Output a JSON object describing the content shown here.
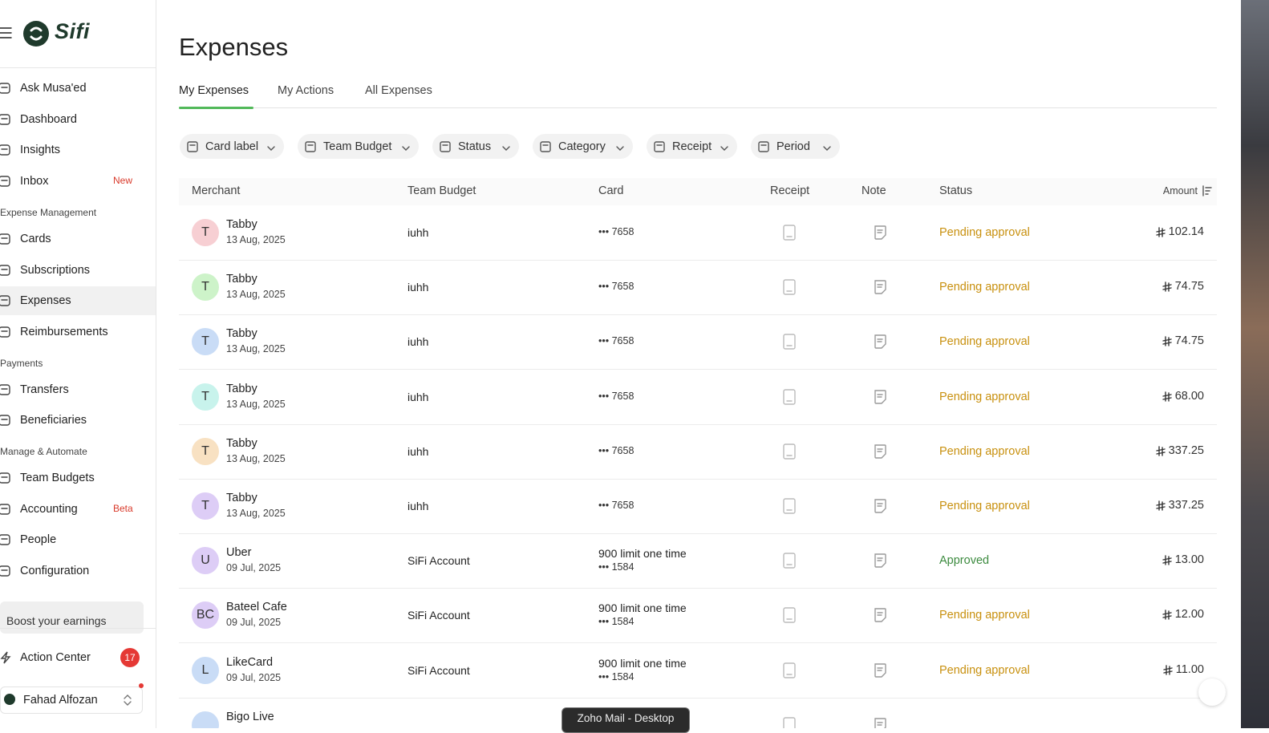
{
  "sidebar": {
    "brand": "Sifi",
    "groups": [
      {
        "items": [
          {
            "label": "Ask Musa'ed"
          },
          {
            "label": "Dashboard"
          },
          {
            "label": "Insights"
          },
          {
            "label": "Inbox",
            "badge": "New"
          }
        ]
      },
      {
        "title": "Expense Management",
        "items": [
          {
            "label": "Cards"
          },
          {
            "label": "Subscriptions"
          },
          {
            "label": "Expenses",
            "active": true
          },
          {
            "label": "Reimbursements"
          }
        ]
      },
      {
        "title": "Payments",
        "items": [
          {
            "label": "Transfers"
          },
          {
            "label": "Beneficiaries"
          }
        ]
      },
      {
        "title": "Manage & Automate",
        "items": [
          {
            "label": "Team Budgets"
          },
          {
            "label": "Accounting",
            "badge": "Beta"
          },
          {
            "label": "People"
          },
          {
            "label": "Configuration"
          }
        ]
      }
    ],
    "promo": "Boost your earnings",
    "action_center": {
      "label": "Action Center",
      "count": "17"
    },
    "user": "Fahad Alfozan"
  },
  "main": {
    "title": "Expenses",
    "tabs": [
      {
        "label": "My Expenses",
        "active": true
      },
      {
        "label": "My Actions"
      },
      {
        "label": "All Expenses"
      }
    ],
    "filters": [
      "Card label",
      "Team Budget",
      "Status",
      "Category",
      "Receipt",
      "Period"
    ],
    "table": {
      "columns": [
        "Merchant",
        "Team Budget",
        "Card",
        "Receipt",
        "Note",
        "Status",
        "Amount"
      ],
      "rows": [
        {
          "avatar": "T",
          "avatar_color": "#f7cfd3",
          "merchant": "Tabby",
          "date": "13 Aug, 2025",
          "team_budget": "iuhh",
          "card_number": "••• 7658",
          "status": "Pending approval",
          "status_color": "#c8900e",
          "amount": "102.14"
        },
        {
          "avatar": "T",
          "avatar_color": "#cdf3c9",
          "merchant": "Tabby",
          "date": "13 Aug, 2025",
          "team_budget": "iuhh",
          "card_number": "••• 7658",
          "status": "Pending approval",
          "status_color": "#c8900e",
          "amount": "74.75"
        },
        {
          "avatar": "T",
          "avatar_color": "#c9dcf6",
          "merchant": "Tabby",
          "date": "13 Aug, 2025",
          "team_budget": "iuhh",
          "card_number": "••• 7658",
          "status": "Pending approval",
          "status_color": "#c8900e",
          "amount": "74.75"
        },
        {
          "avatar": "T",
          "avatar_color": "#c8f3ec",
          "merchant": "Tabby",
          "date": "13 Aug, 2025",
          "team_budget": "iuhh",
          "card_number": "••• 7658",
          "status": "Pending approval",
          "status_color": "#c8900e",
          "amount": "68.00"
        },
        {
          "avatar": "T",
          "avatar_color": "#f8e1c2",
          "merchant": "Tabby",
          "date": "13 Aug, 2025",
          "team_budget": "iuhh",
          "card_number": "••• 7658",
          "status": "Pending approval",
          "status_color": "#c8900e",
          "amount": "337.25"
        },
        {
          "avatar": "T",
          "avatar_color": "#ddcdf6",
          "merchant": "Tabby",
          "date": "13 Aug, 2025",
          "team_budget": "iuhh",
          "card_number": "••• 7658",
          "status": "Pending approval",
          "status_color": "#c8900e",
          "amount": "337.25"
        },
        {
          "avatar": "U",
          "avatar_color": "#ddcdf6",
          "merchant": "Uber",
          "date": "09 Jul, 2025",
          "team_budget": "SiFi Account",
          "card_label": "900 limit one time",
          "card_number": "••• 1584",
          "status": "Approved",
          "status_color": "#3b8a3e",
          "amount": "13.00"
        },
        {
          "avatar": "BC",
          "avatar_color": "#ddcdf6",
          "merchant": "Bateel Cafe",
          "date": "09 Jul, 2025",
          "team_budget": "SiFi Account",
          "card_label": "900 limit one time",
          "card_number": "••• 1584",
          "status": "Pending approval",
          "status_color": "#c8900e",
          "amount": "12.00"
        },
        {
          "avatar": "L",
          "avatar_color": "#c9dcf6",
          "merchant": "LikeCard",
          "date": "09 Jul, 2025",
          "team_budget": "SiFi Account",
          "card_label": "900 limit one time",
          "card_number": "••• 1584",
          "status": "Pending approval",
          "status_color": "#c8900e",
          "amount": "11.00"
        },
        {
          "avatar_color": "#c9dcf6",
          "merchant": "Bigo Live"
        }
      ]
    }
  },
  "tooltip": "Zoho Mail - Desktop"
}
